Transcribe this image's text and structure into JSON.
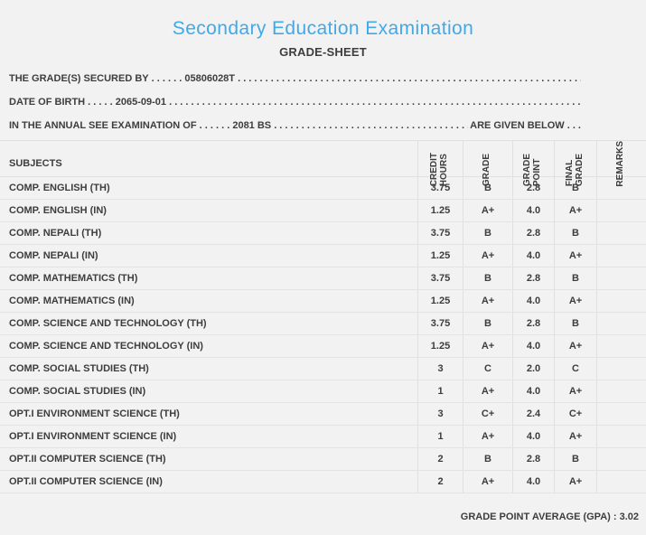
{
  "header": {
    "title": "Secondary Education Examination",
    "subtitle": "GRADE-SHEET"
  },
  "info": {
    "line1": {
      "label": "THE GRADE(S) SECURED BY",
      "leader": " . . . . . . ",
      "value": "05806028T",
      "fill": " . . . . . . . . . . . . . . . . . . . . . . . . . . . . . . . . . . . . . . . . . . . . . . . . . . . . . . . . . . . . . . . . . . . . . . . . . . . . . . . ."
    },
    "line2": {
      "label": "DATE OF BIRTH",
      "leader": " . . . . . ",
      "value": "2065-09-01",
      "fill": " . . . . . . . . . . . . . . . . . . . . . . . . . . . . . . . . . . . . . . . . . . . . . . . . . . . . . . . . . . . . . . . . . . . . . . . . . . . . . . . ."
    },
    "line3": {
      "label": "IN THE ANNUAL SEE EXAMINATION OF",
      "leader": " . . . . . . ",
      "value": "2081 BS",
      "fill": " . . . . . . . . . . . . . . . . . . . . . . . . . . . . . . . . . . . . . . . . . . . . . . . . . . . . . . . . . . . . . . . . . . . . . . . . . . . . . . . .",
      "suffix": " ARE GIVEN BELOW . . ."
    }
  },
  "table": {
    "columns": {
      "subjects": "SUBJECTS",
      "credit_hours": "CREDIT\nHOURS",
      "grade": "GRADE",
      "grade_point": "GRADE\nPOINT",
      "final_grade": "FINAL\nGRADE",
      "remarks": "REMARKS"
    },
    "rows": [
      {
        "subject": "COMP. ENGLISH (TH)",
        "credit_hours": "3.75",
        "grade": "B",
        "grade_point": "2.8",
        "final_grade": "B",
        "remarks": ""
      },
      {
        "subject": "COMP. ENGLISH (IN)",
        "credit_hours": "1.25",
        "grade": "A+",
        "grade_point": "4.0",
        "final_grade": "A+",
        "remarks": ""
      },
      {
        "subject": "COMP. NEPALI (TH)",
        "credit_hours": "3.75",
        "grade": "B",
        "grade_point": "2.8",
        "final_grade": "B",
        "remarks": ""
      },
      {
        "subject": "COMP. NEPALI (IN)",
        "credit_hours": "1.25",
        "grade": "A+",
        "grade_point": "4.0",
        "final_grade": "A+",
        "remarks": ""
      },
      {
        "subject": "COMP. MATHEMATICS (TH)",
        "credit_hours": "3.75",
        "grade": "B",
        "grade_point": "2.8",
        "final_grade": "B",
        "remarks": ""
      },
      {
        "subject": "COMP. MATHEMATICS (IN)",
        "credit_hours": "1.25",
        "grade": "A+",
        "grade_point": "4.0",
        "final_grade": "A+",
        "remarks": ""
      },
      {
        "subject": "COMP. SCIENCE AND TECHNOLOGY (TH)",
        "credit_hours": "3.75",
        "grade": "B",
        "grade_point": "2.8",
        "final_grade": "B",
        "remarks": ""
      },
      {
        "subject": "COMP. SCIENCE AND TECHNOLOGY (IN)",
        "credit_hours": "1.25",
        "grade": "A+",
        "grade_point": "4.0",
        "final_grade": "A+",
        "remarks": ""
      },
      {
        "subject": "COMP. SOCIAL STUDIES (TH)",
        "credit_hours": "3",
        "grade": "C",
        "grade_point": "2.0",
        "final_grade": "C",
        "remarks": ""
      },
      {
        "subject": "COMP. SOCIAL STUDIES (IN)",
        "credit_hours": "1",
        "grade": "A+",
        "grade_point": "4.0",
        "final_grade": "A+",
        "remarks": ""
      },
      {
        "subject": "OPT.I ENVIRONMENT SCIENCE (TH)",
        "credit_hours": "3",
        "grade": "C+",
        "grade_point": "2.4",
        "final_grade": "C+",
        "remarks": ""
      },
      {
        "subject": "OPT.I ENVIRONMENT SCIENCE (IN)",
        "credit_hours": "1",
        "grade": "A+",
        "grade_point": "4.0",
        "final_grade": "A+",
        "remarks": ""
      },
      {
        "subject": "OPT.II COMPUTER SCIENCE (TH)",
        "credit_hours": "2",
        "grade": "B",
        "grade_point": "2.8",
        "final_grade": "B",
        "remarks": ""
      },
      {
        "subject": "OPT.II COMPUTER SCIENCE (IN)",
        "credit_hours": "2",
        "grade": "A+",
        "grade_point": "4.0",
        "final_grade": "A+",
        "remarks": ""
      }
    ]
  },
  "footer": {
    "gpa": "GRADE POINT AVERAGE (GPA) : 3.02"
  },
  "colors": {
    "title_blue": "#42a9e8",
    "text": "#3d3d3d",
    "background": "#f2f2f2",
    "border": "#e0e0e0"
  }
}
